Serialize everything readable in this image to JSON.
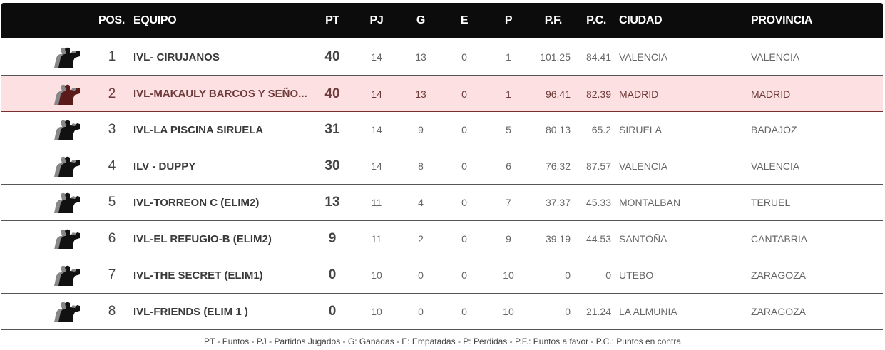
{
  "header": {
    "pos": "POS.",
    "team": "EQUIPO",
    "pt": "PT",
    "pj": "PJ",
    "g": "G",
    "e": "E",
    "p": "P",
    "pf": "P.F.",
    "pc": "P.C.",
    "city": "CIUDAD",
    "province": "PROVINCIA"
  },
  "highlight_color": "#fde0e1",
  "rows": [
    {
      "pos": "1",
      "team": "IVL- CIRUJANOS",
      "pt": "40",
      "pj": "14",
      "g": "13",
      "e": "0",
      "p": "1",
      "pf": "101.25",
      "pc": "84.41",
      "city": "VALENCIA",
      "province": "VALENCIA",
      "icon": "darts-player-icon"
    },
    {
      "pos": "2",
      "team": "IVL-MAKAULY BARCOS Y SEÑO...",
      "pt": "40",
      "pj": "14",
      "g": "13",
      "e": "0",
      "p": "1",
      "pf": "96.41",
      "pc": "82.39",
      "city": "MADRID",
      "province": "MADRID",
      "icon": "darts-player-icon",
      "highlighted": true
    },
    {
      "pos": "3",
      "team": "IVL-LA PISCINA SIRUELA",
      "pt": "31",
      "pj": "14",
      "g": "9",
      "e": "0",
      "p": "5",
      "pf": "80.13",
      "pc": "65.2",
      "city": "SIRUELA",
      "province": "BADAJOZ",
      "icon": "darts-player-icon"
    },
    {
      "pos": "4",
      "team": "ILV - DUPPY",
      "pt": "30",
      "pj": "14",
      "g": "8",
      "e": "0",
      "p": "6",
      "pf": "76.32",
      "pc": "87.57",
      "city": "VALENCIA",
      "province": "VALENCIA",
      "icon": "darts-player-icon"
    },
    {
      "pos": "5",
      "team": "IVL-TORREON C (ELIM2)",
      "pt": "13",
      "pj": "11",
      "g": "4",
      "e": "0",
      "p": "7",
      "pf": "37.37",
      "pc": "45.33",
      "city": "MONTALBAN",
      "province": "TERUEL",
      "icon": "darts-player-icon"
    },
    {
      "pos": "6",
      "team": "IVL-EL REFUGIO-B (ELIM2)",
      "pt": "9",
      "pj": "11",
      "g": "2",
      "e": "0",
      "p": "9",
      "pf": "39.19",
      "pc": "44.53",
      "city": "SANTOÑA",
      "province": "CANTABRIA",
      "icon": "darts-player-icon"
    },
    {
      "pos": "7",
      "team": "IVL-THE SECRET (ELIM1)",
      "pt": "0",
      "pj": "10",
      "g": "0",
      "e": "0",
      "p": "10",
      "pf": "0",
      "pc": "0",
      "city": "UTEBO",
      "province": "ZARAGOZA",
      "icon": "darts-player-icon"
    },
    {
      "pos": "8",
      "team": "IVL-FRIENDS (ELIM 1 )",
      "pt": "0",
      "pj": "10",
      "g": "0",
      "e": "0",
      "p": "10",
      "pf": "0",
      "pc": "21.24",
      "city": "LA ALMUNIA",
      "province": "ZARAGOZA",
      "icon": "darts-player-icon"
    }
  ],
  "legend": "PT - Puntos - PJ - Partidos Jugados - G: Ganadas - E: Empatadas - P: Perdidas - P.F.: Puntos a favor - P.C.: Puntos en contra"
}
